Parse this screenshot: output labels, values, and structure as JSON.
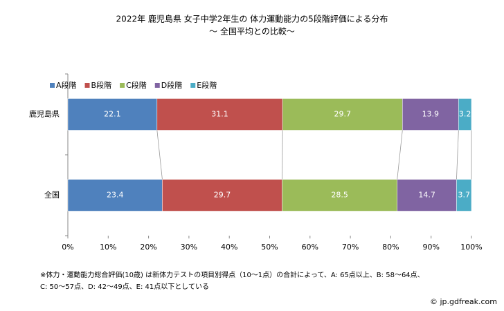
{
  "chart_data": {
    "type": "stacked-bar-horizontal",
    "title": "2022年 鹿児島県 女子中学2年生の 体力運動能力の5段階評価による分布",
    "subtitle": "～ 全国平均との比較～",
    "categories": [
      "鹿児島県",
      "全国"
    ],
    "series": [
      {
        "name": "A段階",
        "color": "#4f81bd",
        "values": [
          22.1,
          23.4
        ]
      },
      {
        "name": "B段階",
        "color": "#c0504d",
        "values": [
          31.1,
          29.7
        ]
      },
      {
        "name": "C段階",
        "color": "#9bbb59",
        "values": [
          29.7,
          28.5
        ]
      },
      {
        "name": "D段階",
        "color": "#8064a2",
        "values": [
          13.9,
          14.7
        ]
      },
      {
        "name": "E段階",
        "color": "#4bacc6",
        "values": [
          3.2,
          3.7
        ]
      }
    ],
    "xlim": [
      0,
      100
    ],
    "xticks": [
      {
        "value": 0,
        "label": "0%"
      },
      {
        "value": 10,
        "label": "10%"
      },
      {
        "value": 20,
        "label": "20%"
      },
      {
        "value": 30,
        "label": "30%"
      },
      {
        "value": 40,
        "label": "40%"
      },
      {
        "value": 50,
        "label": "50%"
      },
      {
        "value": 60,
        "label": "60%"
      },
      {
        "value": 70,
        "label": "70%"
      },
      {
        "value": 80,
        "label": "80%"
      },
      {
        "value": 90,
        "label": "90%"
      },
      {
        "value": 100,
        "label": "100%"
      }
    ],
    "legend": "top-left",
    "notes": [
      "※体力・運動能力総合評価(10歳) は新体力テストの項目別得点（10〜1点）の合計によって、A: 65点以上、B: 58〜64点、",
      "C: 50〜57点、D: 42〜49点、E: 41点以下としている"
    ],
    "source": "© jp.gdfreak.com"
  }
}
